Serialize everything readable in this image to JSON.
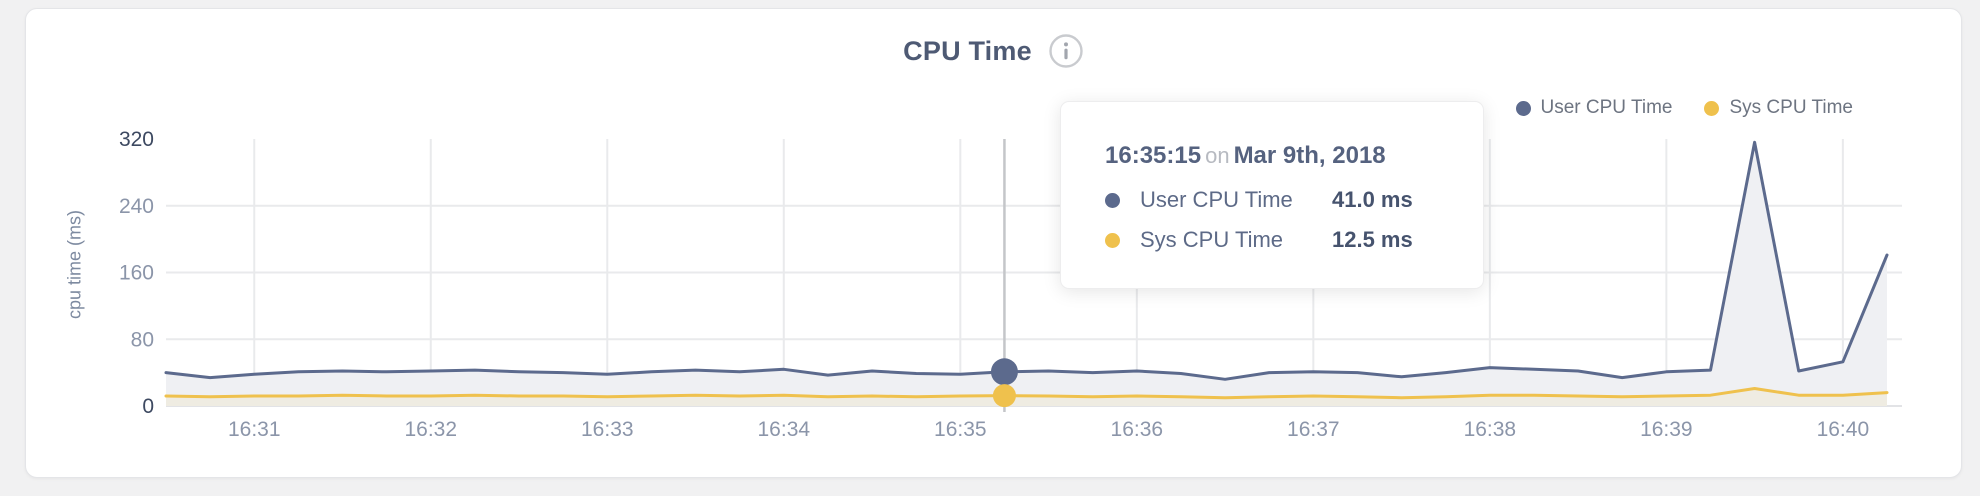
{
  "header": {
    "title": "CPU Time",
    "info_icon": "info-circle"
  },
  "legend": {
    "items": [
      {
        "label": "User CPU Time",
        "color": "#5c6a8d"
      },
      {
        "label": "Sys CPU Time",
        "color": "#efc14d"
      }
    ]
  },
  "tooltip": {
    "time": "16:35:15",
    "connector": "on",
    "date": "Mar 9th, 2018",
    "rows": [
      {
        "label": "User CPU Time",
        "value": "41.0 ms",
        "color": "#5c6a8d"
      },
      {
        "label": "Sys CPU Time",
        "value": "12.5 ms",
        "color": "#efc14d"
      }
    ]
  },
  "chart_data": {
    "type": "area",
    "title": "CPU Time",
    "xlabel": "",
    "ylabel": "cpu time (ms)",
    "ylim": [
      0,
      320
    ],
    "yticks": [
      0,
      80,
      160,
      240,
      320
    ],
    "xticks": [
      "16:31",
      "16:32",
      "16:33",
      "16:34",
      "16:35",
      "16:36",
      "16:37",
      "16:38",
      "16:39",
      "16:40"
    ],
    "grid": true,
    "legend_position": "top-right",
    "x": [
      "16:30:30",
      "16:30:45",
      "16:31:00",
      "16:31:15",
      "16:31:30",
      "16:31:45",
      "16:32:00",
      "16:32:15",
      "16:32:30",
      "16:32:45",
      "16:33:00",
      "16:33:15",
      "16:33:30",
      "16:33:45",
      "16:34:00",
      "16:34:15",
      "16:34:30",
      "16:34:45",
      "16:35:00",
      "16:35:15",
      "16:35:30",
      "16:35:45",
      "16:36:00",
      "16:36:15",
      "16:36:30",
      "16:36:45",
      "16:37:00",
      "16:37:15",
      "16:37:30",
      "16:37:45",
      "16:38:00",
      "16:38:15",
      "16:38:30",
      "16:38:45",
      "16:39:00",
      "16:39:15",
      "16:39:30",
      "16:39:45",
      "16:40:00",
      "16:40:15"
    ],
    "series": [
      {
        "name": "User CPU Time",
        "color": "#5c6a8d",
        "fill": "#eff0f3",
        "values": [
          40,
          34,
          38,
          41,
          42,
          41,
          42,
          43,
          41,
          40,
          38,
          41,
          43,
          41,
          44,
          37,
          42,
          39,
          38,
          41,
          42,
          40,
          42,
          39,
          32,
          40,
          41,
          40,
          35,
          40,
          46,
          44,
          42,
          34,
          41,
          43,
          316,
          42,
          53,
          181
        ]
      },
      {
        "name": "Sys CPU Time",
        "color": "#efc14d",
        "fill": "#efece2",
        "values": [
          12,
          11,
          12,
          12,
          13,
          12,
          12,
          13,
          12,
          12,
          11,
          12,
          13,
          12,
          13,
          11,
          12,
          11,
          12,
          12.5,
          12,
          11,
          12,
          11,
          10,
          11,
          12,
          11,
          10,
          11,
          13,
          13,
          12,
          11,
          12,
          13,
          21,
          13,
          13,
          16
        ]
      }
    ],
    "hover": {
      "time": "16:35:15",
      "values": [
        41.0,
        12.5
      ]
    },
    "colors": {
      "grid": "#e9eaec",
      "axis_line": "#e2e3e6",
      "crosshair": "#c4c6c9",
      "tick_dark": "#3d4961",
      "tick_light": "#8b95a9"
    }
  }
}
